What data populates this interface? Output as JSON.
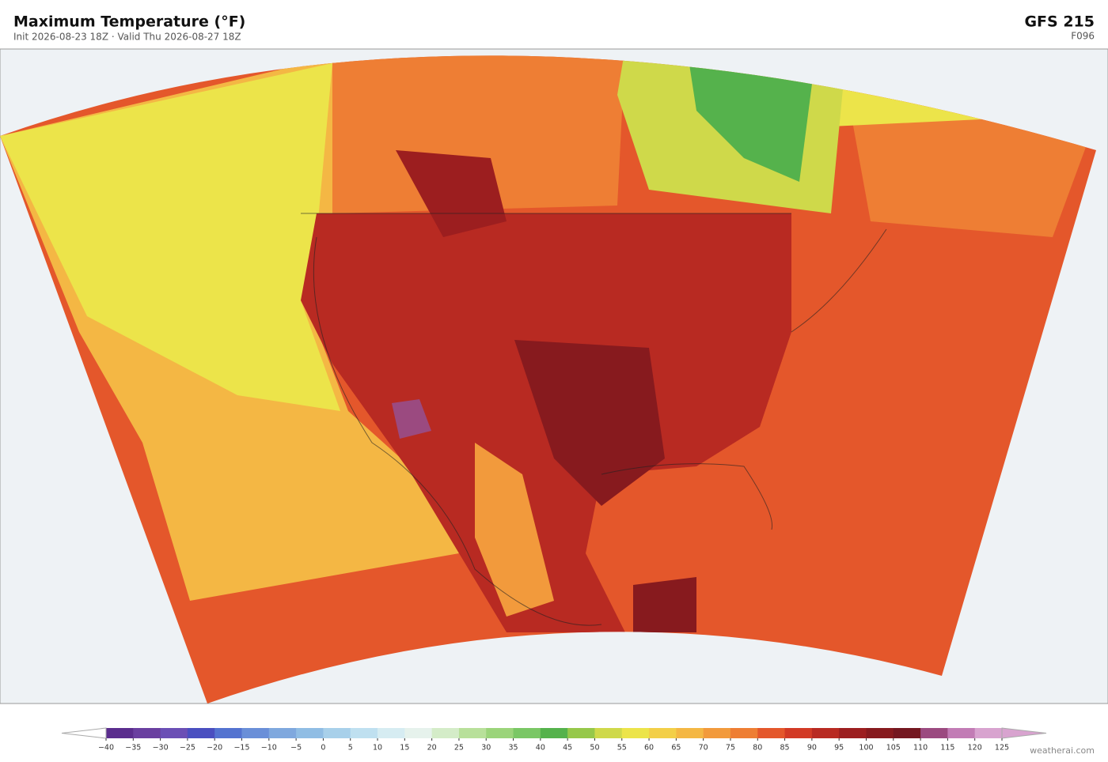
{
  "header": {
    "title": "Maximum Temperature  (°F)",
    "subtitle": "Init 2026-08-23 18Z  ·  Valid Thu 2026-08-27 18Z",
    "model": "GFS  215",
    "forecast_hour": "F096"
  },
  "colorbar": {
    "ticks": [
      {
        "value": -40,
        "label": "−40"
      },
      {
        "value": -35,
        "label": "−35"
      },
      {
        "value": -30,
        "label": "−30"
      },
      {
        "value": -25,
        "label": "−25"
      },
      {
        "value": -20,
        "label": "−20"
      },
      {
        "value": -15,
        "label": "−15"
      },
      {
        "value": -10,
        "label": "−10"
      },
      {
        "value": -5,
        "label": "−5"
      },
      0,
      5,
      10,
      15,
      20,
      25,
      30,
      35,
      40,
      45,
      50,
      55,
      60,
      65,
      70,
      75,
      80,
      85,
      90,
      95,
      100,
      105,
      110,
      115,
      120,
      125
    ],
    "colors": [
      "#5b2d8e",
      "#6a3fa0",
      "#6b4fb5",
      "#4a4fc0",
      "#5473d0",
      "#6a8fd8",
      "#7fa8de",
      "#90bde4",
      "#a8d0ea",
      "#bfe0f0",
      "#d6ecf2",
      "#e6f2ec",
      "#d4ecc8",
      "#b8e09a",
      "#9bd47a",
      "#7ac765",
      "#55b24c",
      "#96c84a",
      "#cfd94a",
      "#ece44a",
      "#f3cf48",
      "#f4b744",
      "#f29a3c",
      "#ee7e34",
      "#e4572b",
      "#d23a25",
      "#b82a22",
      "#9c1e1f",
      "#871a1e",
      "#741720",
      "#9b4a80",
      "#c27cb5",
      "#d8a3cf"
    ],
    "under_color": "#ffffff",
    "over_color": "#d8a3cf"
  },
  "footer": {
    "credit": "weatherai.com"
  }
}
